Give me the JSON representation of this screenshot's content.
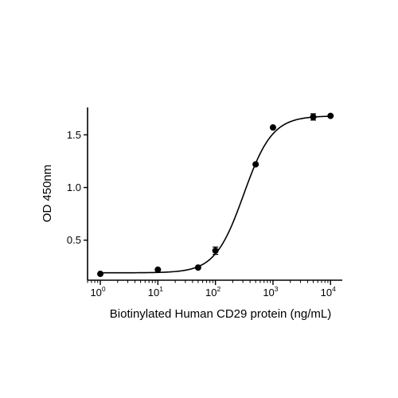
{
  "chart_data": {
    "type": "scatter",
    "title": "",
    "xlabel": "Biotinylated Human CD29 protein (ng/mL)",
    "ylabel": "OD 450nm",
    "x_scale": "log10",
    "xlim": [
      0.6,
      16000
    ],
    "ylim": [
      0.12,
      1.76
    ],
    "x_ticks": [
      {
        "value": 1,
        "base": "10",
        "exp": "0"
      },
      {
        "value": 10,
        "base": "10",
        "exp": "1"
      },
      {
        "value": 100,
        "base": "10",
        "exp": "2"
      },
      {
        "value": 1000,
        "base": "10",
        "exp": "3"
      },
      {
        "value": 10000,
        "base": "10",
        "exp": "4"
      }
    ],
    "y_ticks": [
      {
        "value": 0.5,
        "label": "0.5"
      },
      {
        "value": 1.0,
        "label": "1.0"
      },
      {
        "value": 1.5,
        "label": "1.5"
      }
    ],
    "grid": false,
    "legend": "none",
    "color": "#000000",
    "points": [
      {
        "x": 1,
        "y": 0.18,
        "err": 0.0
      },
      {
        "x": 10,
        "y": 0.22,
        "err": 0.0
      },
      {
        "x": 50,
        "y": 0.24,
        "err": 0.0
      },
      {
        "x": 100,
        "y": 0.4,
        "err": 0.035
      },
      {
        "x": 500,
        "y": 1.22,
        "err": 0.0
      },
      {
        "x": 1000,
        "y": 1.57,
        "err": 0.0
      },
      {
        "x": 5000,
        "y": 1.67,
        "err": 0.03
      },
      {
        "x": 10000,
        "y": 1.68,
        "err": 0.0
      }
    ],
    "fit": {
      "model": "4PL",
      "bottom": 0.19,
      "top": 1.68,
      "ec50": 310,
      "hill": 1.75
    }
  }
}
